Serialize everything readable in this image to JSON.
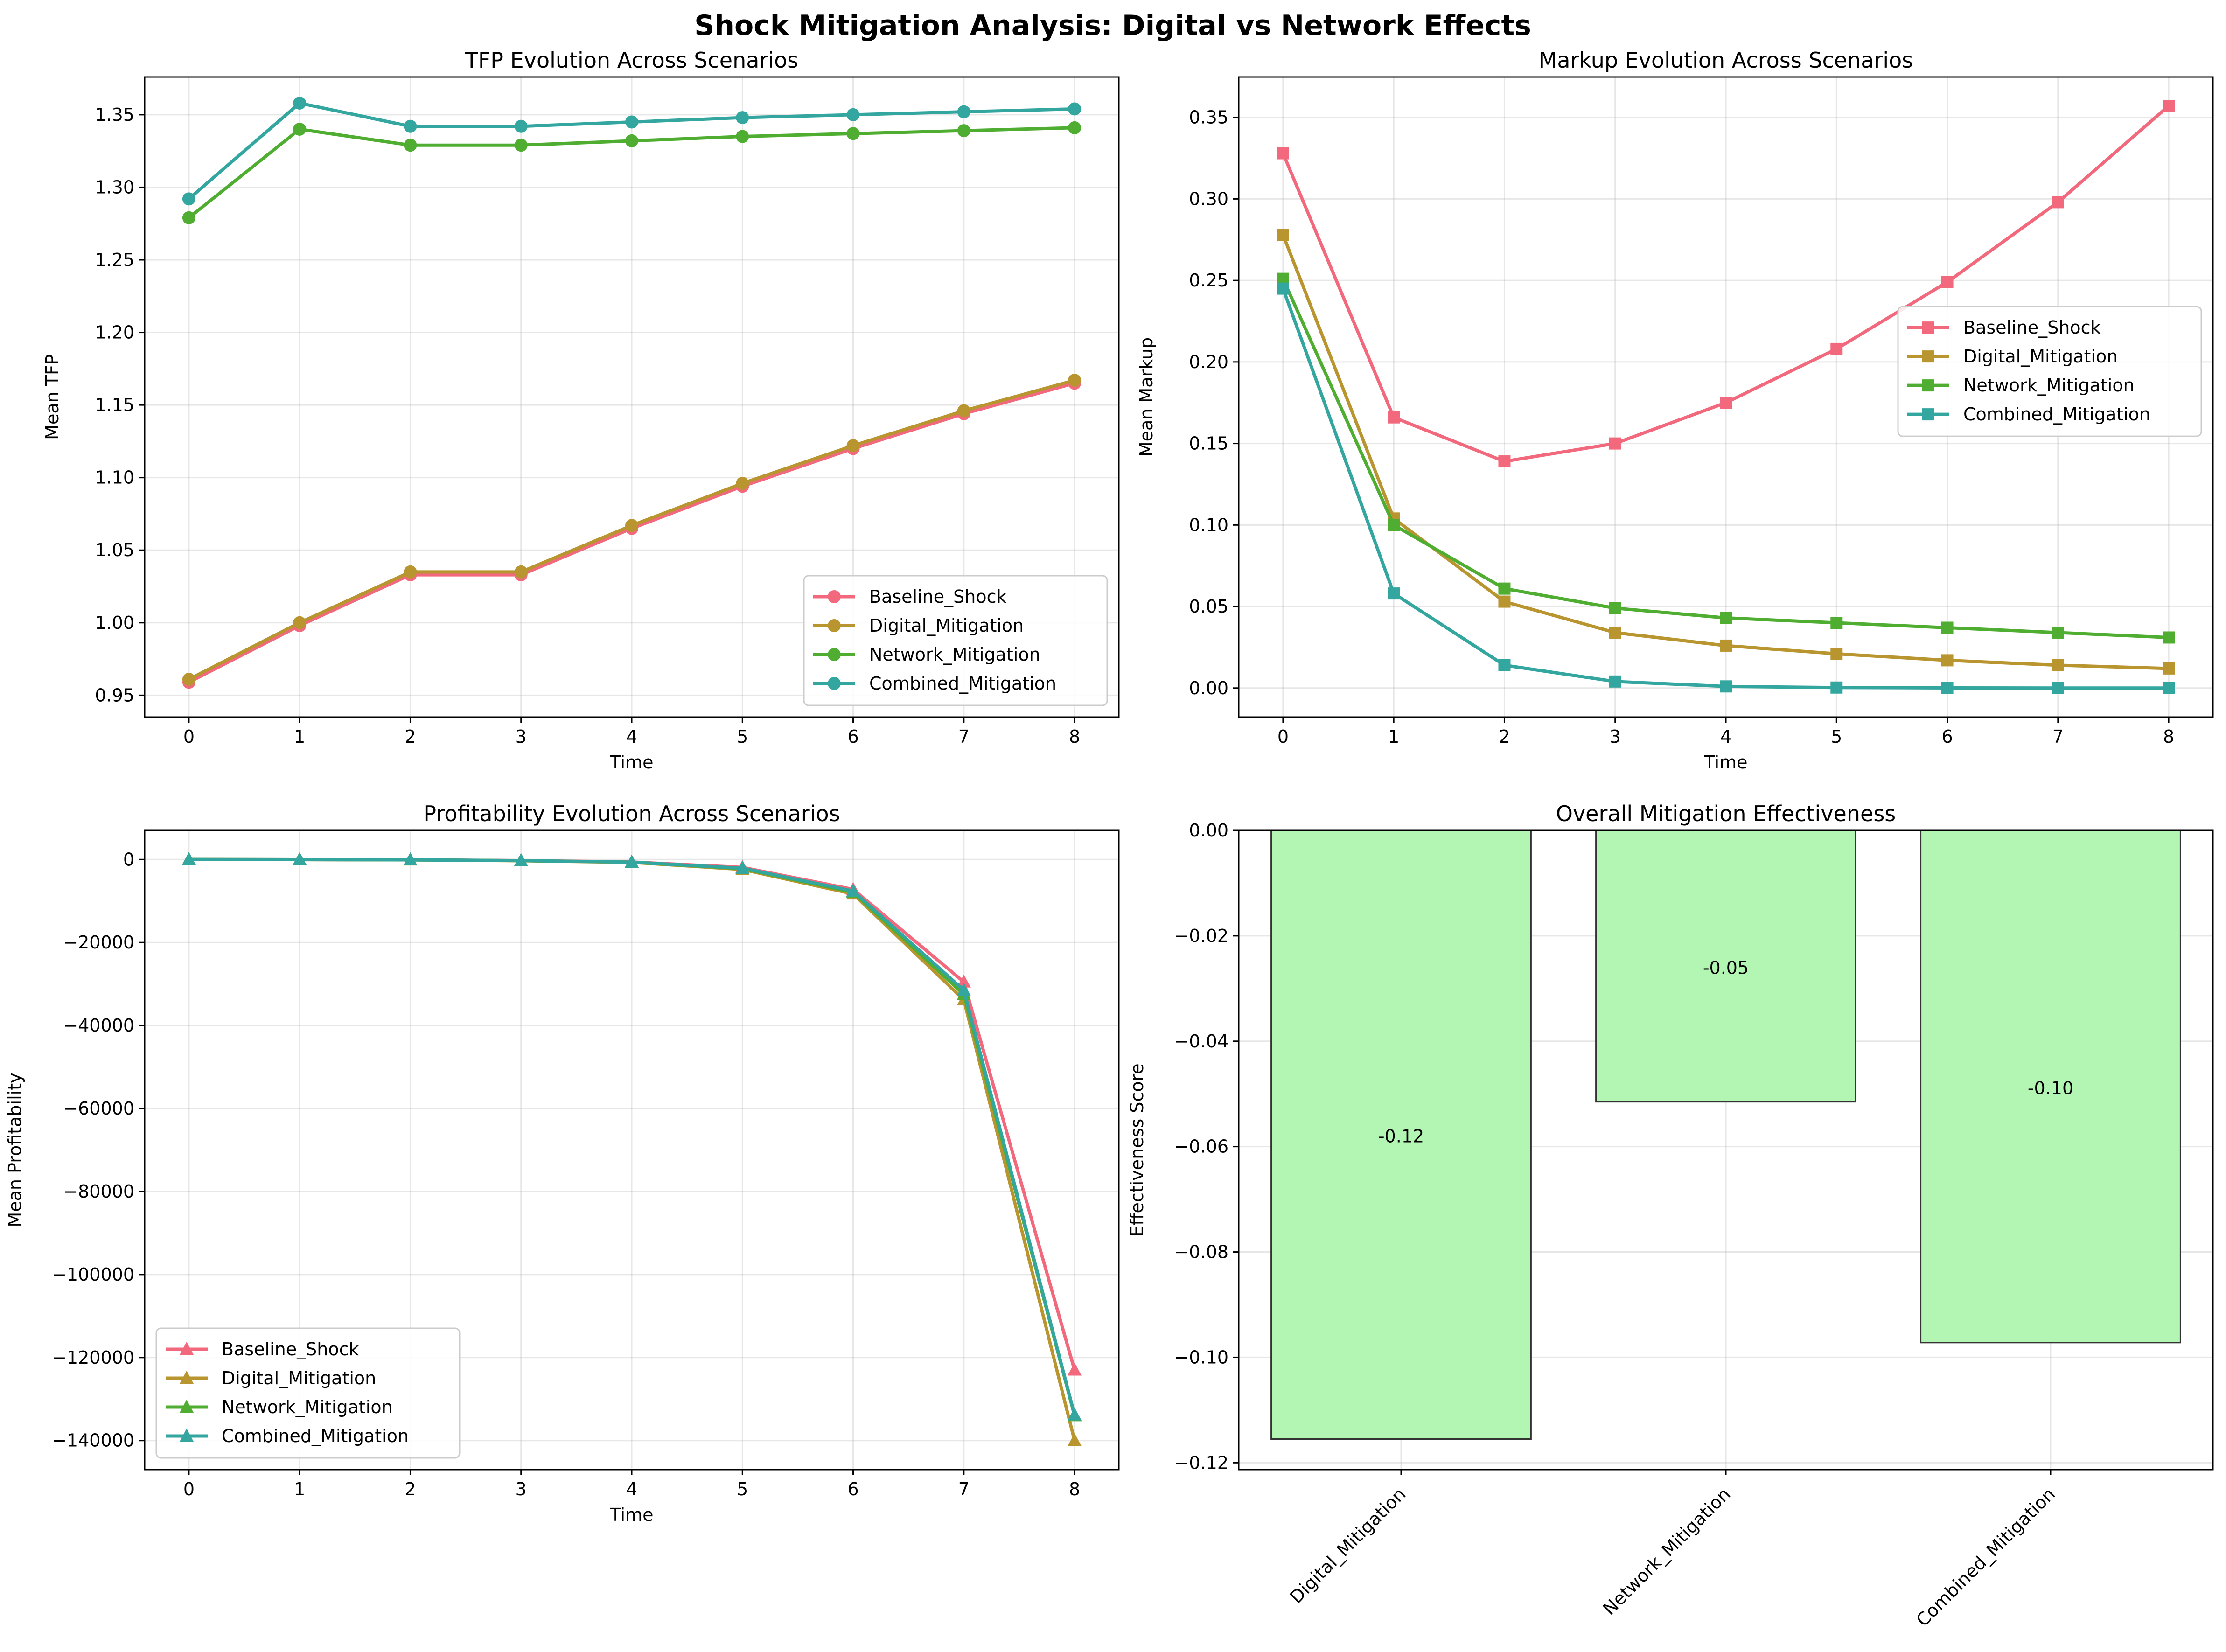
{
  "figure": {
    "title": "Shock Mitigation Analysis: Digital vs Network Effects"
  },
  "chart_data": [
    {
      "id": "tfp",
      "type": "line",
      "title": "TFP Evolution Across Scenarios",
      "xlabel": "Time",
      "ylabel": "Mean TFP",
      "x": [
        0,
        1,
        2,
        3,
        4,
        5,
        6,
        7,
        8
      ],
      "xlim": [
        -0.4,
        8.4
      ],
      "ylim": [
        0.935,
        1.376
      ],
      "yticks": [
        0.95,
        1.0,
        1.05,
        1.1,
        1.15,
        1.2,
        1.25,
        1.3,
        1.35
      ],
      "ytick_labels": [
        "0.95",
        "1.00",
        "1.05",
        "1.10",
        "1.15",
        "1.20",
        "1.25",
        "1.30",
        "1.35"
      ],
      "marker": "circle",
      "grid": true,
      "legend_position": "lower-right",
      "series": [
        {
          "name": "Baseline_Shock",
          "color": "#f2697d",
          "values": [
            0.959,
            0.998,
            1.033,
            1.033,
            1.065,
            1.094,
            1.12,
            1.144,
            1.165
          ]
        },
        {
          "name": "Digital_Mitigation",
          "color": "#b8952f",
          "values": [
            0.961,
            1.0,
            1.035,
            1.035,
            1.067,
            1.096,
            1.122,
            1.146,
            1.167
          ]
        },
        {
          "name": "Network_Mitigation",
          "color": "#4fae31",
          "values": [
            1.279,
            1.34,
            1.329,
            1.329,
            1.332,
            1.335,
            1.337,
            1.339,
            1.341
          ]
        },
        {
          "name": "Combined_Mitigation",
          "color": "#34a6a0",
          "values": [
            1.292,
            1.358,
            1.342,
            1.342,
            1.345,
            1.348,
            1.35,
            1.352,
            1.354
          ]
        }
      ]
    },
    {
      "id": "markup",
      "type": "line",
      "title": "Markup Evolution Across Scenarios",
      "xlabel": "Time",
      "ylabel": "Mean Markup",
      "x": [
        0,
        1,
        2,
        3,
        4,
        5,
        6,
        7,
        8
      ],
      "xlim": [
        -0.4,
        8.4
      ],
      "ylim": [
        -0.0178,
        0.3748
      ],
      "yticks": [
        0.0,
        0.05,
        0.1,
        0.15,
        0.2,
        0.25,
        0.3,
        0.35
      ],
      "ytick_labels": [
        "0.00",
        "0.05",
        "0.10",
        "0.15",
        "0.20",
        "0.25",
        "0.30",
        "0.35"
      ],
      "marker": "square",
      "grid": true,
      "legend_position": "center-right",
      "series": [
        {
          "name": "Baseline_Shock",
          "color": "#f2697d",
          "values": [
            0.328,
            0.166,
            0.139,
            0.15,
            0.175,
            0.208,
            0.249,
            0.298,
            0.357
          ]
        },
        {
          "name": "Digital_Mitigation",
          "color": "#b8952f",
          "values": [
            0.278,
            0.104,
            0.053,
            0.034,
            0.026,
            0.021,
            0.017,
            0.014,
            0.012
          ]
        },
        {
          "name": "Network_Mitigation",
          "color": "#4fae31",
          "values": [
            0.251,
            0.1,
            0.061,
            0.049,
            0.043,
            0.04,
            0.037,
            0.034,
            0.031
          ]
        },
        {
          "name": "Combined_Mitigation",
          "color": "#34a6a0",
          "values": [
            0.245,
            0.058,
            0.014,
            0.004,
            0.001,
            0.0003,
            0.0001,
            0.0,
            0.0
          ]
        }
      ]
    },
    {
      "id": "profit",
      "type": "line",
      "title": "Profitability Evolution Across Scenarios",
      "xlabel": "Time",
      "ylabel": "Mean Profitability",
      "x": [
        0,
        1,
        2,
        3,
        4,
        5,
        6,
        7,
        8
      ],
      "xlim": [
        -0.4,
        8.4
      ],
      "ylim": [
        -147000,
        7000
      ],
      "yticks": [
        0,
        -20000,
        -40000,
        -60000,
        -80000,
        -100000,
        -120000,
        -140000
      ],
      "ytick_labels": [
        "0",
        "−20000",
        "−40000",
        "−60000",
        "−80000",
        "−100000",
        "−120000",
        "−140000"
      ],
      "marker": "triangle",
      "grid": true,
      "legend_position": "lower-left",
      "series": [
        {
          "name": "Baseline_Shock",
          "color": "#f2697d",
          "values": [
            0,
            -20,
            -80,
            -250,
            -600,
            -1900,
            -7200,
            -29500,
            -123000
          ]
        },
        {
          "name": "Digital_Mitigation",
          "color": "#b8952f",
          "values": [
            0,
            -20,
            -90,
            -300,
            -700,
            -2400,
            -8300,
            -33800,
            -140000
          ]
        },
        {
          "name": "Network_Mitigation",
          "color": "#4fae31",
          "values": [
            0,
            -20,
            -85,
            -280,
            -650,
            -2200,
            -7900,
            -32500,
            -134000
          ]
        },
        {
          "name": "Combined_Mitigation",
          "color": "#34a6a0",
          "values": [
            0,
            -20,
            -85,
            -270,
            -640,
            -2100,
            -7600,
            -31500,
            -133800
          ]
        }
      ]
    },
    {
      "id": "effect",
      "type": "bar",
      "title": "Overall Mitigation Effectiveness",
      "xlabel": "",
      "ylabel": "Effectiveness Score",
      "categories": [
        "Digital_Mitigation",
        "Network_Mitigation",
        "Combined_Mitigation"
      ],
      "values": [
        -0.1155,
        -0.0515,
        -0.0972
      ],
      "value_labels": [
        "-0.12",
        "-0.05",
        "-0.10"
      ],
      "ylim": [
        -0.1213,
        0.0
      ],
      "yticks": [
        0.0,
        -0.02,
        -0.04,
        -0.06,
        -0.08,
        -0.1,
        -0.12
      ],
      "ytick_labels": [
        "0.00",
        "−0.02",
        "−0.04",
        "−0.06",
        "−0.08",
        "−0.10",
        "−0.12"
      ],
      "bar_color": "#b3f5b3",
      "grid": true
    }
  ]
}
